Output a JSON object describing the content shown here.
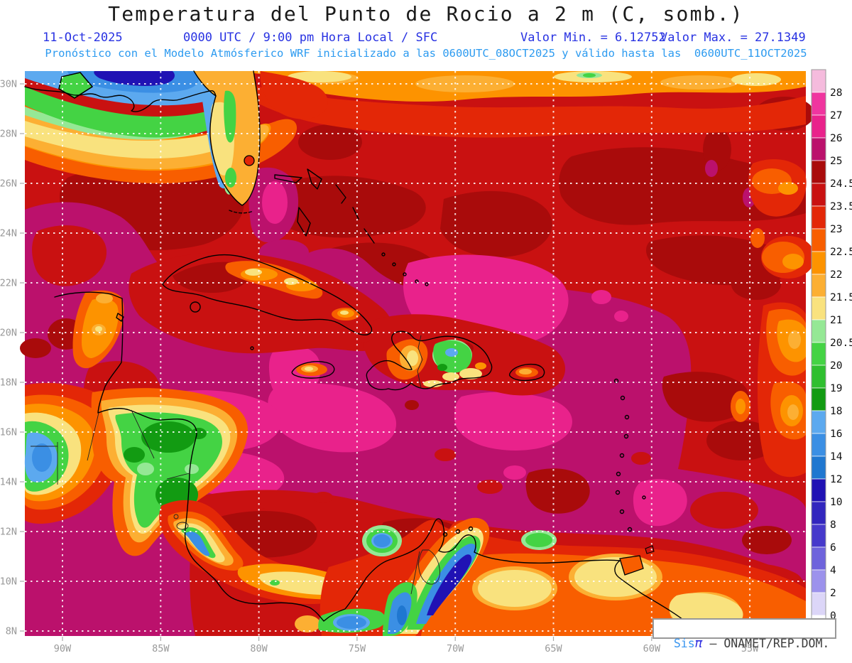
{
  "header": {
    "title": "Temperatura del Punto de Rocio a 2 m (C, somb.)",
    "date": "11-Oct-2025",
    "time": "0000 UTC / 9:00 pm Hora Local / SFC",
    "min_label": "Valor Min. = 6.12752",
    "max_label": "Valor Max. = 27.1349",
    "forecast": "Pronóstico con el Modelo Atmósferico WRF inicializado a las 0600UTC_08OCT2025 y válido hasta las  0600UTC_11OCT2025"
  },
  "watermark": {
    "brand": "Sis",
    "pi": "π",
    "rest": " – ONAMET/REP.DOM."
  },
  "axes": {
    "lat": [
      "30N",
      "28N",
      "26N",
      "24N",
      "22N",
      "20N",
      "18N",
      "16N",
      "14N",
      "12N",
      "10N",
      "8N"
    ],
    "lon": [
      "90W",
      "85W",
      "80W",
      "75W",
      "70W",
      "65W",
      "60W",
      "55W"
    ]
  },
  "colorbar": {
    "ticks": [
      "28",
      "27",
      "26",
      "25",
      "24.5",
      "23.5",
      "23",
      "22.5",
      "22",
      "21.5",
      "21",
      "20.5",
      "20",
      "19",
      "18",
      "16",
      "14",
      "12",
      "10",
      "8",
      "6",
      "4",
      "2",
      "0"
    ],
    "colors": [
      "#F5BBDD",
      "#F0359F",
      "#E9228B",
      "#BB116C",
      "#A90B0B",
      "#C91111",
      "#E32707",
      "#F85E00",
      "#FD9300",
      "#FCAF33",
      "#F9E27E",
      "#95E895",
      "#44D344",
      "#2FBF2F",
      "#129B12",
      "#5CA9EF",
      "#3B8FE4",
      "#1F77D0",
      "#2012B4",
      "#3226BE",
      "#4639CB",
      "#6E63DC",
      "#9C92EC",
      "#DCD6F8",
      "#FFFFFF"
    ]
  },
  "palette": {
    "red": "#C91111",
    "dred": "#A90B0B",
    "bred": "#E32707",
    "ornR": "#F85E00",
    "orn": "#FD9300",
    "lorn": "#FCAF33",
    "yel": "#F9E27E",
    "lgrn": "#95E895",
    "grn": "#44D344",
    "mgrn": "#2FBF2F",
    "dgrn": "#129B12",
    "lblu": "#5CA9EF",
    "blu": "#3B8FE4",
    "mblu": "#1F77D0",
    "nvy": "#2012B4",
    "ind": "#3226BE",
    "mag": "#BB116C",
    "pink": "#E9228B",
    "hpink": "#F0359F",
    "lpink": "#F5BBDD",
    "subtitle_blue": "#2832E2",
    "forecast_blue": "#2D9BF0",
    "axis_gray": "#999999"
  },
  "chart_data": {
    "type": "heatmap",
    "title": "Temperatura del Punto de Rocio a 2 m (C, somb.)",
    "variable": "2 m dew point temperature (°C, shaded contours)",
    "valid": "11-Oct-2025 0000 UTC / 9:00 pm Hora Local / SFC",
    "model": "WRF, inicializado 0600UTC_08OCT2025, válido hasta 0600UTC_11OCT2025",
    "value_min": 6.12752,
    "value_max": 27.1349,
    "levels": [
      0,
      2,
      4,
      6,
      8,
      10,
      12,
      14,
      16,
      18,
      19,
      20,
      20.5,
      21,
      21.5,
      22,
      22.5,
      23,
      23.5,
      24.5,
      25,
      26,
      27,
      28
    ],
    "x": {
      "label": "longitude",
      "ticks": [
        "90W",
        "85W",
        "80W",
        "75W",
        "70W",
        "65W",
        "60W",
        "55W"
      ]
    },
    "y": {
      "label": "latitude",
      "ticks": [
        "30N",
        "28N",
        "26N",
        "24N",
        "22N",
        "20N",
        "18N",
        "16N",
        "14N",
        "12N",
        "10N",
        "8N"
      ]
    },
    "legend_position": "right",
    "grid": true,
    "notes": "Caribbean basin map: sea mostly 25-27C dew points (magenta/pink); drier air (orange/yellow/green/blue) over US Gulf coast, Florida, and mountain areas of Central America, Hispaniola and the Andes"
  }
}
